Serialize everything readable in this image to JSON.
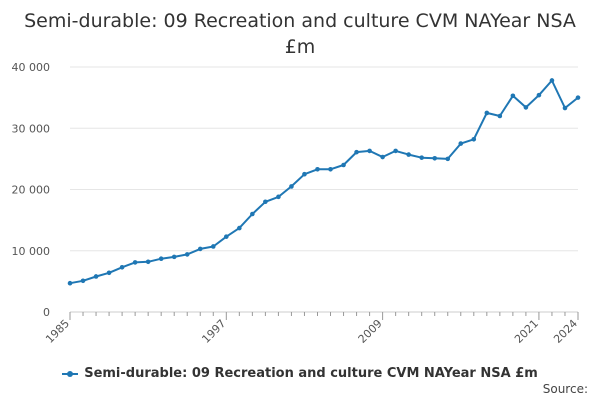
{
  "chart_data": {
    "type": "line",
    "title": "Semi-durable: 09 Recreation and culture CVM NAYear NSA £m",
    "xlabel": "",
    "ylabel": "",
    "ylim": [
      0,
      40000
    ],
    "xlim": [
      1985,
      2024
    ],
    "y_ticks": [
      0,
      10000,
      20000,
      30000,
      40000
    ],
    "y_tick_labels": [
      "0",
      "10 000",
      "20 000",
      "30 000",
      "40 000"
    ],
    "x_ticks": [
      1985,
      1997,
      2009,
      2021,
      2024
    ],
    "x_tick_labels": [
      "1985",
      "1997",
      "2009",
      "2021",
      "2024"
    ],
    "grid": "horizontal",
    "legend_position": "bottom",
    "color": "#1f77b4",
    "series": [
      {
        "name": "Semi-durable: 09 Recreation and culture CVM NAYear NSA £m",
        "x": [
          1985,
          1986,
          1987,
          1988,
          1989,
          1990,
          1991,
          1992,
          1993,
          1994,
          1995,
          1996,
          1997,
          1998,
          1999,
          2000,
          2001,
          2002,
          2003,
          2004,
          2005,
          2006,
          2007,
          2008,
          2009,
          2010,
          2011,
          2012,
          2013,
          2014,
          2015,
          2016,
          2017,
          2018,
          2019,
          2020,
          2021,
          2022,
          2023,
          2024
        ],
        "values": [
          4700,
          5100,
          5800,
          6400,
          7300,
          8100,
          8200,
          8700,
          9000,
          9400,
          10300,
          10700,
          12300,
          13700,
          16000,
          18000,
          18800,
          20500,
          22500,
          23300,
          23300,
          24000,
          26100,
          26300,
          25300,
          26300,
          25700,
          25200,
          25100,
          25000,
          27500,
          28200,
          32500,
          32000,
          35300,
          33400,
          35400,
          37800,
          33300,
          35000
        ]
      }
    ]
  },
  "legend": {
    "label": "Semi-durable: 09 Recreation and culture CVM NAYear NSA £m"
  },
  "footer": {
    "source_label": "Source:"
  }
}
